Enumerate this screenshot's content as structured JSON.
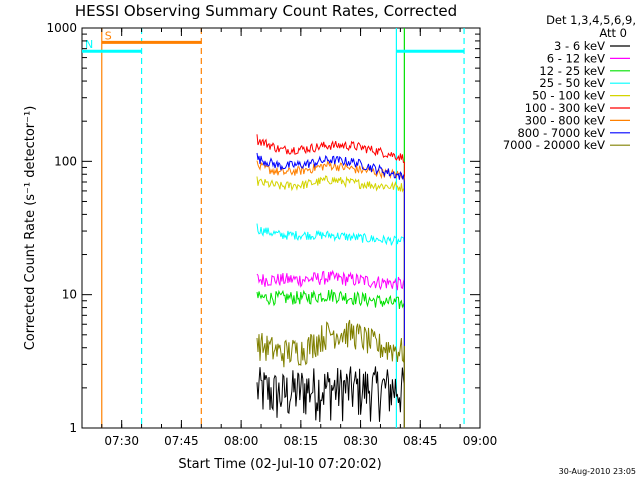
{
  "chart_data": {
    "type": "line",
    "title": "HESSI Observing Summary Count Rates, Corrected",
    "xlabel": "Start Time (02-Jul-10 07:20:02)",
    "ylabel": "Corrected Count Rate (s⁻¹ detector⁻¹)",
    "yscale": "log",
    "ylim": [
      1,
      1000
    ],
    "xlim": [
      "07:20:02",
      "09:00:00"
    ],
    "x_ticks": [
      "07:30",
      "07:45",
      "08:00",
      "08:15",
      "08:30",
      "08:45",
      "09:00"
    ],
    "y_ticks": [
      "1",
      "10",
      "100",
      "1000"
    ],
    "legend": {
      "header": [
        "Det 1,3,4,5,6,9,",
        "Att 0"
      ],
      "placement": "outside-right"
    },
    "series": [
      {
        "name": "3 - 6 keV",
        "color": "#000000",
        "x": [
          "08:04",
          "08:10",
          "08:16",
          "08:22",
          "08:28",
          "08:34",
          "08:41"
        ],
        "values": [
          2,
          1.8,
          2,
          2,
          2,
          2,
          2
        ]
      },
      {
        "name": "6 - 12 keV",
        "color": "#ff00ff",
        "x": [
          "08:04",
          "08:10",
          "08:16",
          "08:22",
          "08:28",
          "08:34",
          "08:41"
        ],
        "values": [
          13,
          13,
          13,
          13.5,
          13,
          12.5,
          12
        ]
      },
      {
        "name": "12 - 25 keV",
        "color": "#00e000",
        "x": [
          "08:04",
          "08:10",
          "08:16",
          "08:22",
          "08:28",
          "08:34",
          "08:41"
        ],
        "values": [
          9.5,
          9.5,
          9.5,
          10,
          9.5,
          9,
          8.5
        ]
      },
      {
        "name": "25 - 50 keV",
        "color": "#00ffff",
        "x": [
          "08:04",
          "08:10",
          "08:16",
          "08:22",
          "08:28",
          "08:34",
          "08:41"
        ],
        "values": [
          31,
          28,
          28,
          28,
          27,
          26,
          25
        ]
      },
      {
        "name": "50 - 100 keV",
        "color": "#d4d400",
        "x": [
          "08:04",
          "08:10",
          "08:16",
          "08:22",
          "08:28",
          "08:34",
          "08:41"
        ],
        "values": [
          70,
          65,
          67,
          73,
          69,
          66,
          64
        ]
      },
      {
        "name": "100 - 300 keV",
        "color": "#ff0000",
        "x": [
          "08:04",
          "08:10",
          "08:16",
          "08:22",
          "08:28",
          "08:34",
          "08:41"
        ],
        "values": [
          145,
          122,
          124,
          132,
          131,
          120,
          106
        ]
      },
      {
        "name": "300 - 800 keV",
        "color": "#ff8000",
        "x": [
          "08:04",
          "08:10",
          "08:16",
          "08:22",
          "08:28",
          "08:34",
          "08:41"
        ],
        "values": [
          92,
          82,
          86,
          94,
          88,
          83,
          79
        ]
      },
      {
        "name": "800 - 7000 keV",
        "color": "#0000ff",
        "x": [
          "08:04",
          "08:10",
          "08:16",
          "08:22",
          "08:28",
          "08:34",
          "08:41"
        ],
        "values": [
          105,
          92,
          95,
          103,
          99,
          88,
          76
        ]
      },
      {
        "name": "7000 - 20000 keV",
        "color": "#808000",
        "x": [
          "08:04",
          "08:10",
          "08:16",
          "08:22",
          "08:28",
          "08:34",
          "08:41"
        ],
        "values": [
          4.3,
          3.7,
          3.9,
          5.2,
          5.2,
          4.2,
          3.8
        ]
      }
    ],
    "flags": [
      {
        "label": "S",
        "color": "#ff8000",
        "start": "07:25",
        "end": "07:50",
        "level": 780
      },
      {
        "label": "N",
        "color": "#00ffff",
        "start": "07:20:02",
        "end": "07:35",
        "level": 670
      },
      {
        "label": "",
        "color": "#00ffff",
        "start": "08:39",
        "end": "08:56",
        "level": 670
      }
    ],
    "vertical_lines": [
      {
        "time": "07:25",
        "color": "#ff8000",
        "style": "solid"
      },
      {
        "time": "07:35",
        "color": "#00ffff",
        "style": "dashed"
      },
      {
        "time": "07:50",
        "color": "#ff8000",
        "style": "dashed"
      },
      {
        "time": "08:39",
        "color": "#00ffff",
        "style": "solid"
      },
      {
        "time": "08:41",
        "color": "#00e000",
        "style": "solid"
      },
      {
        "time": "08:56",
        "color": "#00ffff",
        "style": "dashed"
      }
    ]
  },
  "footer": {
    "date_stamp": "30-Aug-2010 23:05"
  }
}
